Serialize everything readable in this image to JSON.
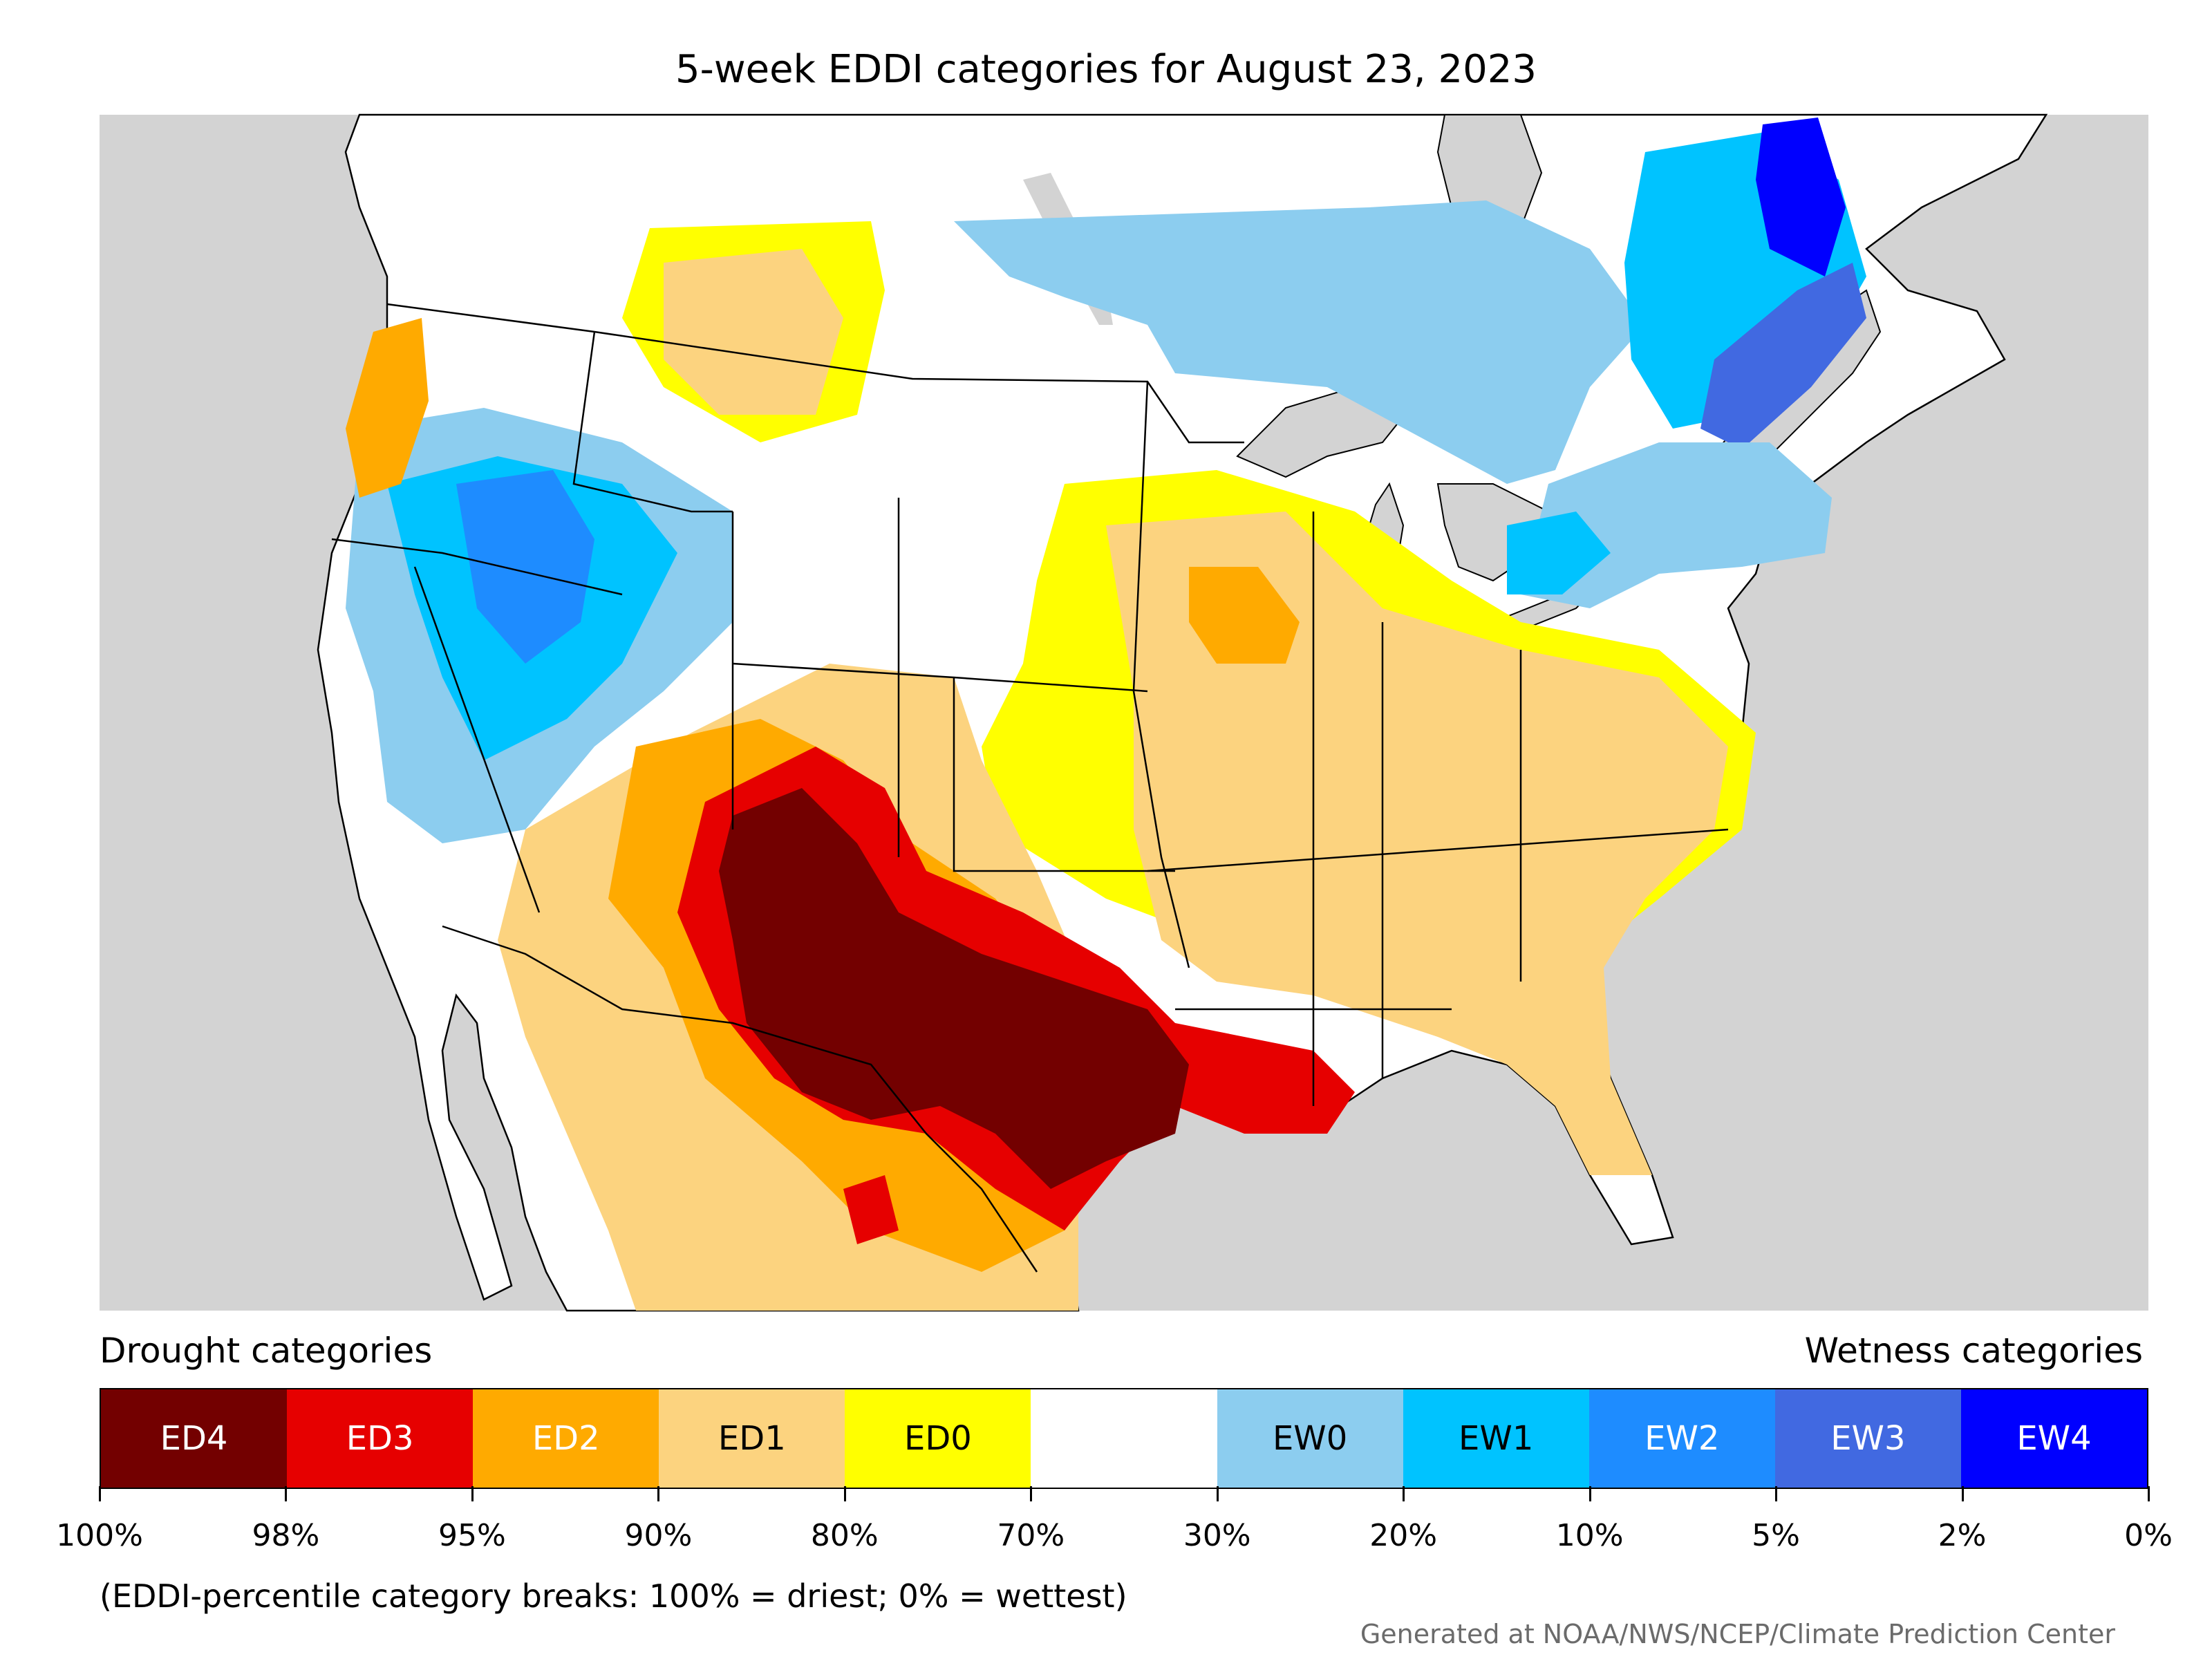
{
  "title": "5-week EDDI categories for August 23, 2023",
  "legend": {
    "left_heading": "Drought categories",
    "right_heading": "Wetness categories",
    "categories": [
      {
        "label": "ED4",
        "color": "#730000",
        "text_color": "#ffffff"
      },
      {
        "label": "ED3",
        "color": "#e60000",
        "text_color": "#ffffff"
      },
      {
        "label": "ED2",
        "color": "#ffaa00",
        "text_color": "#ffffff"
      },
      {
        "label": "ED1",
        "color": "#fcd37f",
        "text_color": "#000000"
      },
      {
        "label": "ED0",
        "color": "#ffff00",
        "text_color": "#000000"
      },
      {
        "label": "",
        "color": "#ffffff",
        "text_color": "#000000"
      },
      {
        "label": "EW0",
        "color": "#8ccdef",
        "text_color": "#000000"
      },
      {
        "label": "EW1",
        "color": "#00c3ff",
        "text_color": "#000000"
      },
      {
        "label": "EW2",
        "color": "#1e8cff",
        "text_color": "#ffffff"
      },
      {
        "label": "EW3",
        "color": "#4169e1",
        "text_color": "#ffffff"
      },
      {
        "label": "EW4",
        "color": "#0000ff",
        "text_color": "#ffffff"
      }
    ],
    "breaks": [
      "100%",
      "98%",
      "95%",
      "90%",
      "80%",
      "70%",
      "30%",
      "20%",
      "10%",
      "5%",
      "2%",
      "0%"
    ]
  },
  "note": "(EDDI-percentile category breaks: 100% = driest; 0% = wettest)",
  "credit": "Generated at NOAA/NWS/NCEP/Climate Prediction Center",
  "map_colors": {
    "water_background": "#d3d3d3",
    "land_no_category": "#ffffff",
    "lakes": "#d3d3d3",
    "borders": "#000000"
  }
}
